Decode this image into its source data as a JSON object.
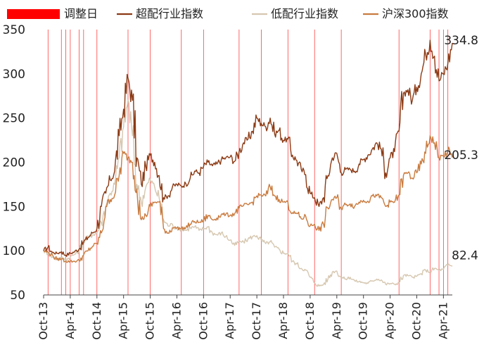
{
  "chart_data": {
    "type": "line",
    "title": "",
    "xlabel": "",
    "ylabel": "",
    "ylim": [
      50,
      350
    ],
    "yticks": [
      50,
      100,
      150,
      200,
      250,
      300,
      350
    ],
    "xticks": [
      "Oct-13",
      "Apr-14",
      "Oct-14",
      "Apr-15",
      "Oct-15",
      "Apr-16",
      "Oct-16",
      "Apr-17",
      "Oct-17",
      "Apr-18",
      "Oct-18",
      "Apr-19",
      "Oct-19",
      "Apr-20",
      "Oct-20",
      "Apr-21"
    ],
    "legend": {
      "position": "top",
      "adjustment_label": "调整日",
      "adjustment_color": "#ff0000"
    },
    "adjustment_dates": [
      "2013-11",
      "2014-02",
      "2014-03",
      "2014-04",
      "2014-06",
      "2014-07",
      "2014-10",
      "2015-05",
      "2015-10",
      "2016-05",
      "2016-10",
      "2017-06",
      "2017-11",
      "2018-05",
      "2018-11",
      "2019-05",
      "2020-06",
      "2021-01",
      "2021-03",
      "2021-04",
      "2021-05"
    ],
    "series": [
      {
        "name": "超配行业指数",
        "color": "#8b3a14",
        "end_label": "334.8",
        "points": [
          [
            "2013-10",
            100
          ],
          [
            "2013-11",
            104
          ],
          [
            "2013-12",
            98
          ],
          [
            "2014-01",
            97
          ],
          [
            "2014-02",
            99
          ],
          [
            "2014-03",
            95
          ],
          [
            "2014-04",
            97
          ],
          [
            "2014-05",
            99
          ],
          [
            "2014-06",
            102
          ],
          [
            "2014-07",
            110
          ],
          [
            "2014-08",
            115
          ],
          [
            "2014-09",
            120
          ],
          [
            "2014-10",
            125
          ],
          [
            "2014-11",
            150
          ],
          [
            "2014-12",
            165
          ],
          [
            "2015-01",
            180
          ],
          [
            "2015-02",
            190
          ],
          [
            "2015-03",
            230
          ],
          [
            "2015-04",
            260
          ],
          [
            "2015-05",
            295
          ],
          [
            "2015-06",
            270
          ],
          [
            "2015-07",
            205
          ],
          [
            "2015-08",
            175
          ],
          [
            "2015-09",
            195
          ],
          [
            "2015-10",
            208
          ],
          [
            "2015-11",
            200
          ],
          [
            "2015-12",
            185
          ],
          [
            "2016-01",
            160
          ],
          [
            "2016-02",
            162
          ],
          [
            "2016-03",
            172
          ],
          [
            "2016-04",
            175
          ],
          [
            "2016-05",
            173
          ],
          [
            "2016-06",
            176
          ],
          [
            "2016-07",
            182
          ],
          [
            "2016-08",
            190
          ],
          [
            "2016-09",
            188
          ],
          [
            "2016-10",
            195
          ],
          [
            "2016-11",
            200
          ],
          [
            "2016-12",
            196
          ],
          [
            "2017-01",
            198
          ],
          [
            "2017-02",
            203
          ],
          [
            "2017-03",
            205
          ],
          [
            "2017-04",
            206
          ],
          [
            "2017-05",
            201
          ],
          [
            "2017-06",
            212
          ],
          [
            "2017-07",
            222
          ],
          [
            "2017-08",
            226
          ],
          [
            "2017-09",
            235
          ],
          [
            "2017-10",
            250
          ],
          [
            "2017-11",
            244
          ],
          [
            "2017-12",
            240
          ],
          [
            "2018-01",
            250
          ],
          [
            "2018-02",
            232
          ],
          [
            "2018-03",
            236
          ],
          [
            "2018-04",
            225
          ],
          [
            "2018-05",
            226
          ],
          [
            "2018-06",
            208
          ],
          [
            "2018-07",
            202
          ],
          [
            "2018-08",
            192
          ],
          [
            "2018-09",
            186
          ],
          [
            "2018-10",
            165
          ],
          [
            "2018-11",
            160
          ],
          [
            "2018-12",
            150
          ],
          [
            "2019-01",
            160
          ],
          [
            "2019-02",
            185
          ],
          [
            "2019-03",
            205
          ],
          [
            "2019-04",
            210
          ],
          [
            "2019-05",
            188
          ],
          [
            "2019-06",
            192
          ],
          [
            "2019-07",
            192
          ],
          [
            "2019-08",
            190
          ],
          [
            "2019-09",
            198
          ],
          [
            "2019-10",
            203
          ],
          [
            "2019-11",
            208
          ],
          [
            "2019-12",
            215
          ],
          [
            "2020-01",
            222
          ],
          [
            "2020-02",
            215
          ],
          [
            "2020-03",
            188
          ],
          [
            "2020-04",
            205
          ],
          [
            "2020-05",
            212
          ],
          [
            "2020-06",
            235
          ],
          [
            "2020-07",
            278
          ],
          [
            "2020-08",
            282
          ],
          [
            "2020-09",
            270
          ],
          [
            "2020-10",
            285
          ],
          [
            "2020-11",
            300
          ],
          [
            "2020-12",
            322
          ],
          [
            "2021-01",
            338
          ],
          [
            "2021-02",
            320
          ],
          [
            "2021-03",
            292
          ],
          [
            "2021-04",
            300
          ],
          [
            "2021-05",
            312
          ],
          [
            "2021-06",
            334.8
          ]
        ]
      },
      {
        "name": "低配行业指数",
        "color": "#d6c7b0",
        "end_label": "82.4",
        "points": [
          [
            "2013-10",
            100
          ],
          [
            "2013-11",
            97
          ],
          [
            "2013-12",
            93
          ],
          [
            "2014-01",
            90
          ],
          [
            "2014-02",
            92
          ],
          [
            "2014-03",
            90
          ],
          [
            "2014-04",
            93
          ],
          [
            "2014-05",
            96
          ],
          [
            "2014-06",
            100
          ],
          [
            "2014-07",
            110
          ],
          [
            "2014-08",
            115
          ],
          [
            "2014-09",
            118
          ],
          [
            "2014-10",
            120
          ],
          [
            "2014-11",
            132
          ],
          [
            "2014-12",
            150
          ],
          [
            "2015-01",
            165
          ],
          [
            "2015-02",
            175
          ],
          [
            "2015-03",
            205
          ],
          [
            "2015-04",
            240
          ],
          [
            "2015-05",
            270
          ],
          [
            "2015-06",
            230
          ],
          [
            "2015-07",
            175
          ],
          [
            "2015-08",
            155
          ],
          [
            "2015-09",
            172
          ],
          [
            "2015-10",
            180
          ],
          [
            "2015-11",
            172
          ],
          [
            "2015-12",
            160
          ],
          [
            "2016-01",
            135
          ],
          [
            "2016-02",
            128
          ],
          [
            "2016-03",
            130
          ],
          [
            "2016-04",
            125
          ],
          [
            "2016-05",
            124
          ],
          [
            "2016-06",
            123
          ],
          [
            "2016-07",
            126
          ],
          [
            "2016-08",
            127
          ],
          [
            "2016-09",
            123
          ],
          [
            "2016-10",
            125
          ],
          [
            "2016-11",
            127
          ],
          [
            "2016-12",
            120
          ],
          [
            "2017-01",
            118
          ],
          [
            "2017-02",
            120
          ],
          [
            "2017-03",
            116
          ],
          [
            "2017-04",
            112
          ],
          [
            "2017-05",
            106
          ],
          [
            "2017-06",
            110
          ],
          [
            "2017-07",
            110
          ],
          [
            "2017-08",
            113
          ],
          [
            "2017-09",
            116
          ],
          [
            "2017-10",
            117
          ],
          [
            "2017-11",
            112
          ],
          [
            "2017-12",
            108
          ],
          [
            "2018-01",
            110
          ],
          [
            "2018-02",
            104
          ],
          [
            "2018-03",
            102
          ],
          [
            "2018-04",
            97
          ],
          [
            "2018-05",
            97
          ],
          [
            "2018-06",
            88
          ],
          [
            "2018-07",
            85
          ],
          [
            "2018-08",
            80
          ],
          [
            "2018-09",
            78
          ],
          [
            "2018-10",
            70
          ],
          [
            "2018-11",
            64
          ],
          [
            "2018-12",
            60
          ],
          [
            "2019-01",
            62
          ],
          [
            "2019-02",
            68
          ],
          [
            "2019-03",
            76
          ],
          [
            "2019-04",
            77
          ],
          [
            "2019-05",
            70
          ],
          [
            "2019-06",
            68
          ],
          [
            "2019-07",
            70
          ],
          [
            "2019-08",
            66
          ],
          [
            "2019-09",
            65
          ],
          [
            "2019-10",
            64
          ],
          [
            "2019-11",
            63
          ],
          [
            "2019-12",
            66
          ],
          [
            "2020-01",
            68
          ],
          [
            "2020-02",
            67
          ],
          [
            "2020-03",
            62
          ],
          [
            "2020-04",
            63
          ],
          [
            "2020-05",
            62
          ],
          [
            "2020-06",
            64
          ],
          [
            "2020-07",
            72
          ],
          [
            "2020-08",
            72
          ],
          [
            "2020-09",
            70
          ],
          [
            "2020-10",
            71
          ],
          [
            "2020-11",
            74
          ],
          [
            "2020-12",
            78
          ],
          [
            "2021-01",
            76
          ],
          [
            "2021-02",
            80
          ],
          [
            "2021-03",
            78
          ],
          [
            "2021-04",
            79
          ],
          [
            "2021-05",
            84
          ],
          [
            "2021-06",
            82.4
          ]
        ]
      },
      {
        "name": "沪深300指数",
        "color": "#c97b3f",
        "end_label": "205.3",
        "points": [
          [
            "2013-10",
            100
          ],
          [
            "2013-11",
            98
          ],
          [
            "2013-12",
            95
          ],
          [
            "2014-01",
            90
          ],
          [
            "2014-02",
            91
          ],
          [
            "2014-03",
            88
          ],
          [
            "2014-04",
            88
          ],
          [
            "2014-05",
            88
          ],
          [
            "2014-06",
            89
          ],
          [
            "2014-07",
            95
          ],
          [
            "2014-08",
            100
          ],
          [
            "2014-09",
            105
          ],
          [
            "2014-10",
            108
          ],
          [
            "2014-11",
            120
          ],
          [
            "2014-12",
            150
          ],
          [
            "2015-01",
            158
          ],
          [
            "2015-02",
            163
          ],
          [
            "2015-03",
            185
          ],
          [
            "2015-04",
            210
          ],
          [
            "2015-05",
            205
          ],
          [
            "2015-06",
            200
          ],
          [
            "2015-07",
            170
          ],
          [
            "2015-08",
            135
          ],
          [
            "2015-09",
            140
          ],
          [
            "2015-10",
            150
          ],
          [
            "2015-11",
            155
          ],
          [
            "2015-12",
            155
          ],
          [
            "2016-01",
            125
          ],
          [
            "2016-02",
            120
          ],
          [
            "2016-03",
            126
          ],
          [
            "2016-04",
            126
          ],
          [
            "2016-05",
            125
          ],
          [
            "2016-06",
            126
          ],
          [
            "2016-07",
            130
          ],
          [
            "2016-08",
            133
          ],
          [
            "2016-09",
            132
          ],
          [
            "2016-10",
            134
          ],
          [
            "2016-11",
            140
          ],
          [
            "2016-12",
            135
          ],
          [
            "2017-01",
            137
          ],
          [
            "2017-02",
            141
          ],
          [
            "2017-03",
            141
          ],
          [
            "2017-04",
            140
          ],
          [
            "2017-05",
            142
          ],
          [
            "2017-06",
            148
          ],
          [
            "2017-07",
            151
          ],
          [
            "2017-08",
            152
          ],
          [
            "2017-09",
            155
          ],
          [
            "2017-10",
            162
          ],
          [
            "2017-11",
            163
          ],
          [
            "2017-12",
            162
          ],
          [
            "2018-01",
            172
          ],
          [
            "2018-02",
            162
          ],
          [
            "2018-03",
            158
          ],
          [
            "2018-04",
            155
          ],
          [
            "2018-05",
            155
          ],
          [
            "2018-06",
            143
          ],
          [
            "2018-07",
            142
          ],
          [
            "2018-08",
            136
          ],
          [
            "2018-09",
            139
          ],
          [
            "2018-10",
            128
          ],
          [
            "2018-11",
            130
          ],
          [
            "2018-12",
            123
          ],
          [
            "2019-01",
            130
          ],
          [
            "2019-02",
            148
          ],
          [
            "2019-03",
            158
          ],
          [
            "2019-04",
            160
          ],
          [
            "2019-05",
            148
          ],
          [
            "2019-06",
            152
          ],
          [
            "2019-07",
            153
          ],
          [
            "2019-08",
            150
          ],
          [
            "2019-09",
            155
          ],
          [
            "2019-10",
            157
          ],
          [
            "2019-11",
            156
          ],
          [
            "2019-12",
            162
          ],
          [
            "2020-01",
            162
          ],
          [
            "2020-02",
            160
          ],
          [
            "2020-03",
            150
          ],
          [
            "2020-04",
            155
          ],
          [
            "2020-05",
            155
          ],
          [
            "2020-06",
            163
          ],
          [
            "2020-07",
            185
          ],
          [
            "2020-08",
            188
          ],
          [
            "2020-09",
            182
          ],
          [
            "2020-10",
            188
          ],
          [
            "2020-11",
            198
          ],
          [
            "2020-12",
            210
          ],
          [
            "2021-01",
            230
          ],
          [
            "2021-02",
            222
          ],
          [
            "2021-03",
            205
          ],
          [
            "2021-04",
            207
          ],
          [
            "2021-05",
            213
          ],
          [
            "2021-06",
            205.3
          ]
        ]
      }
    ]
  }
}
